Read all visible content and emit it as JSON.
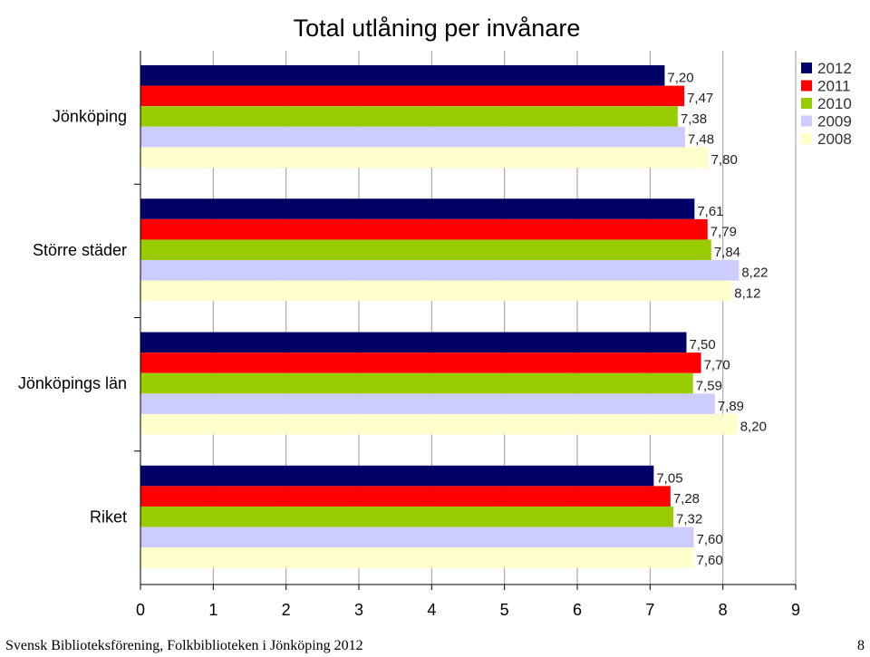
{
  "chart_data": {
    "type": "bar",
    "orientation": "horizontal",
    "title": "Total utlåning per invånare",
    "categories": [
      "Jönköping",
      "Större städer",
      "Jönköpings län",
      "Riket"
    ],
    "series": [
      {
        "name": "2012",
        "color": "#000066",
        "values": [
          7.2,
          7.61,
          7.5,
          7.05
        ],
        "labels": [
          "7,20",
          "7,61",
          "7,50",
          "7,05"
        ]
      },
      {
        "name": "2011",
        "color": "#ff0000",
        "values": [
          7.47,
          7.79,
          7.7,
          7.28
        ],
        "labels": [
          "7,47",
          "7,79",
          "7,70",
          "7,28"
        ]
      },
      {
        "name": "2010",
        "color": "#99cc00",
        "values": [
          7.38,
          7.84,
          7.59,
          7.32
        ],
        "labels": [
          "7,38",
          "7,84",
          "7,59",
          "7,32"
        ]
      },
      {
        "name": "2009",
        "color": "#ccccff",
        "values": [
          7.48,
          8.22,
          7.89,
          7.6
        ],
        "labels": [
          "7,48",
          "8,22",
          "7,89",
          "7,60"
        ]
      },
      {
        "name": "2008",
        "color": "#ffffcc",
        "values": [
          7.8,
          8.12,
          8.2,
          7.6
        ],
        "labels": [
          "7,80",
          "8,12",
          "8,20",
          "7,60"
        ]
      }
    ],
    "xlim": [
      0,
      9
    ],
    "xticks": [
      "0",
      "1",
      "2",
      "3",
      "4",
      "5",
      "6",
      "7",
      "8",
      "9"
    ],
    "grid": true,
    "legend_position": "top-right"
  },
  "footer": {
    "source": "Svensk Biblioteksförening, Folkbiblioteken i Jönköping 2012",
    "page_number": "8"
  }
}
